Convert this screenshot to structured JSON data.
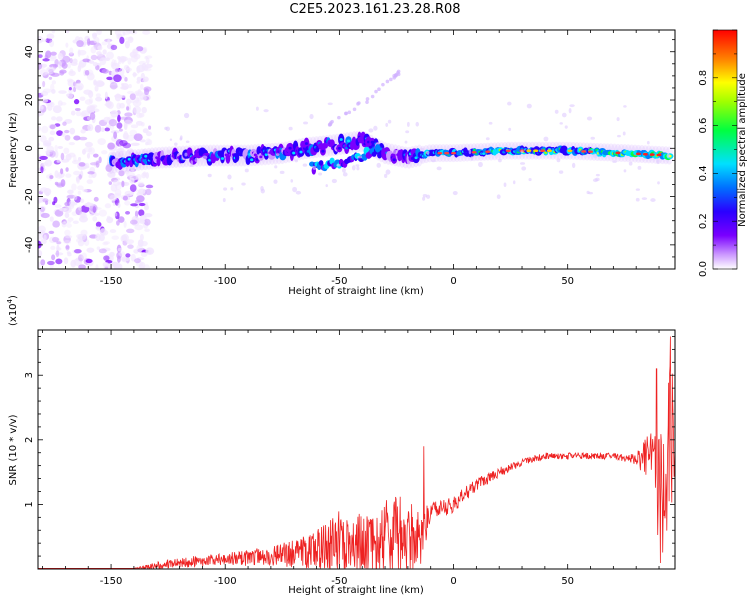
{
  "title": "C2E5.2023.161.23.28.R08",
  "colors": {
    "spectral_scale": [
      "#ffffff",
      "#e6ccff",
      "#b266ff",
      "#7a00e6",
      "#2f00ff",
      "#0090ff",
      "#00e0e0",
      "#00e000",
      "#b0f000",
      "#ffe000",
      "#ff7000",
      "#ff0000"
    ],
    "snr_line": "#ee2222"
  },
  "chart_data": [
    {
      "type": "heatmap",
      "title": "",
      "xlabel": "Height of straight line (km)",
      "ylabel": "Frequency (Hz)",
      "xlim": [
        -182,
        97
      ],
      "ylim": [
        -50,
        49
      ],
      "x_ticks": [
        -150,
        -100,
        -50,
        0,
        50
      ],
      "y_ticks": [
        -40,
        -20,
        0,
        20,
        40
      ],
      "colorbar": {
        "label": "Normalized spectral amplitude",
        "range": [
          0.0,
          1.0
        ],
        "ticks": [
          "0.0",
          "0.2",
          "0.4",
          "0.6",
          "0.8"
        ],
        "tick_values": [
          0.0,
          0.2,
          0.4,
          0.6,
          0.8
        ]
      },
      "features": {
        "noise_region_x": [
          -182,
          -133
        ],
        "main_trace": [
          {
            "x": -150,
            "y": -6
          },
          {
            "x": -130,
            "y": -4
          },
          {
            "x": -110,
            "y": -3
          },
          {
            "x": -90,
            "y": -3
          },
          {
            "x": -75,
            "y": -2
          },
          {
            "x": -65,
            "y": 0
          },
          {
            "x": -55,
            "y": 1
          },
          {
            "x": -40,
            "y": 3
          },
          {
            "x": -30,
            "y": -2
          },
          {
            "x": -20,
            "y": -4
          },
          {
            "x": -10,
            "y": -2
          },
          {
            "x": 0,
            "y": -2
          },
          {
            "x": 25,
            "y": -1
          },
          {
            "x": 50,
            "y": -1
          },
          {
            "x": 75,
            "y": -2
          },
          {
            "x": 95,
            "y": -3
          }
        ],
        "secondary_trace": [
          {
            "x": -62,
            "y": -8
          },
          {
            "x": -50,
            "y": -6
          },
          {
            "x": -40,
            "y": -3
          },
          {
            "x": -33,
            "y": -1
          }
        ],
        "upper_streak": [
          {
            "x": -55,
            "y": 10
          },
          {
            "x": -38,
            "y": 20
          },
          {
            "x": -22,
            "y": 33
          }
        ]
      }
    },
    {
      "type": "line",
      "title": "",
      "xlabel": "Height of straight line (km)",
      "ylabel": "SNR (10 * v/v)",
      "y_multiplier_label": "(x10",
      "y_multiplier_exp": "4",
      "xlim": [
        -182,
        97
      ],
      "ylim": [
        0,
        3.7
      ],
      "x_ticks": [
        -150,
        -100,
        -50,
        0,
        50
      ],
      "y_ticks": [
        1,
        2,
        3
      ],
      "envelope": {
        "x": [
          -182,
          -140,
          -130,
          -120,
          -100,
          -80,
          -60,
          -50,
          -40,
          -30,
          -20,
          -15,
          -10,
          0,
          10,
          20,
          30,
          40,
          50,
          60,
          70,
          80,
          85,
          88,
          90,
          92,
          95,
          97
        ],
        "base": [
          0.01,
          0.01,
          0.05,
          0.1,
          0.15,
          0.2,
          0.3,
          0.4,
          0.4,
          0.5,
          0.45,
          0.4,
          0.9,
          1.0,
          1.3,
          1.5,
          1.65,
          1.75,
          1.75,
          1.75,
          1.75,
          1.7,
          1.75,
          1.9,
          1.3,
          1.0,
          2.0,
          2.5
        ],
        "amp": [
          0.0,
          0.0,
          0.06,
          0.08,
          0.1,
          0.15,
          0.3,
          0.5,
          0.5,
          0.6,
          0.7,
          0.5,
          0.12,
          0.15,
          0.1,
          0.08,
          0.05,
          0.05,
          0.05,
          0.05,
          0.05,
          0.08,
          0.4,
          0.4,
          1.2,
          1.4,
          1.2,
          1.0
        ]
      },
      "peaks": [
        {
          "x": -13,
          "y": 1.9
        },
        {
          "x": 89,
          "y": 3.1
        },
        {
          "x": 95,
          "y": 3.6
        }
      ]
    }
  ]
}
